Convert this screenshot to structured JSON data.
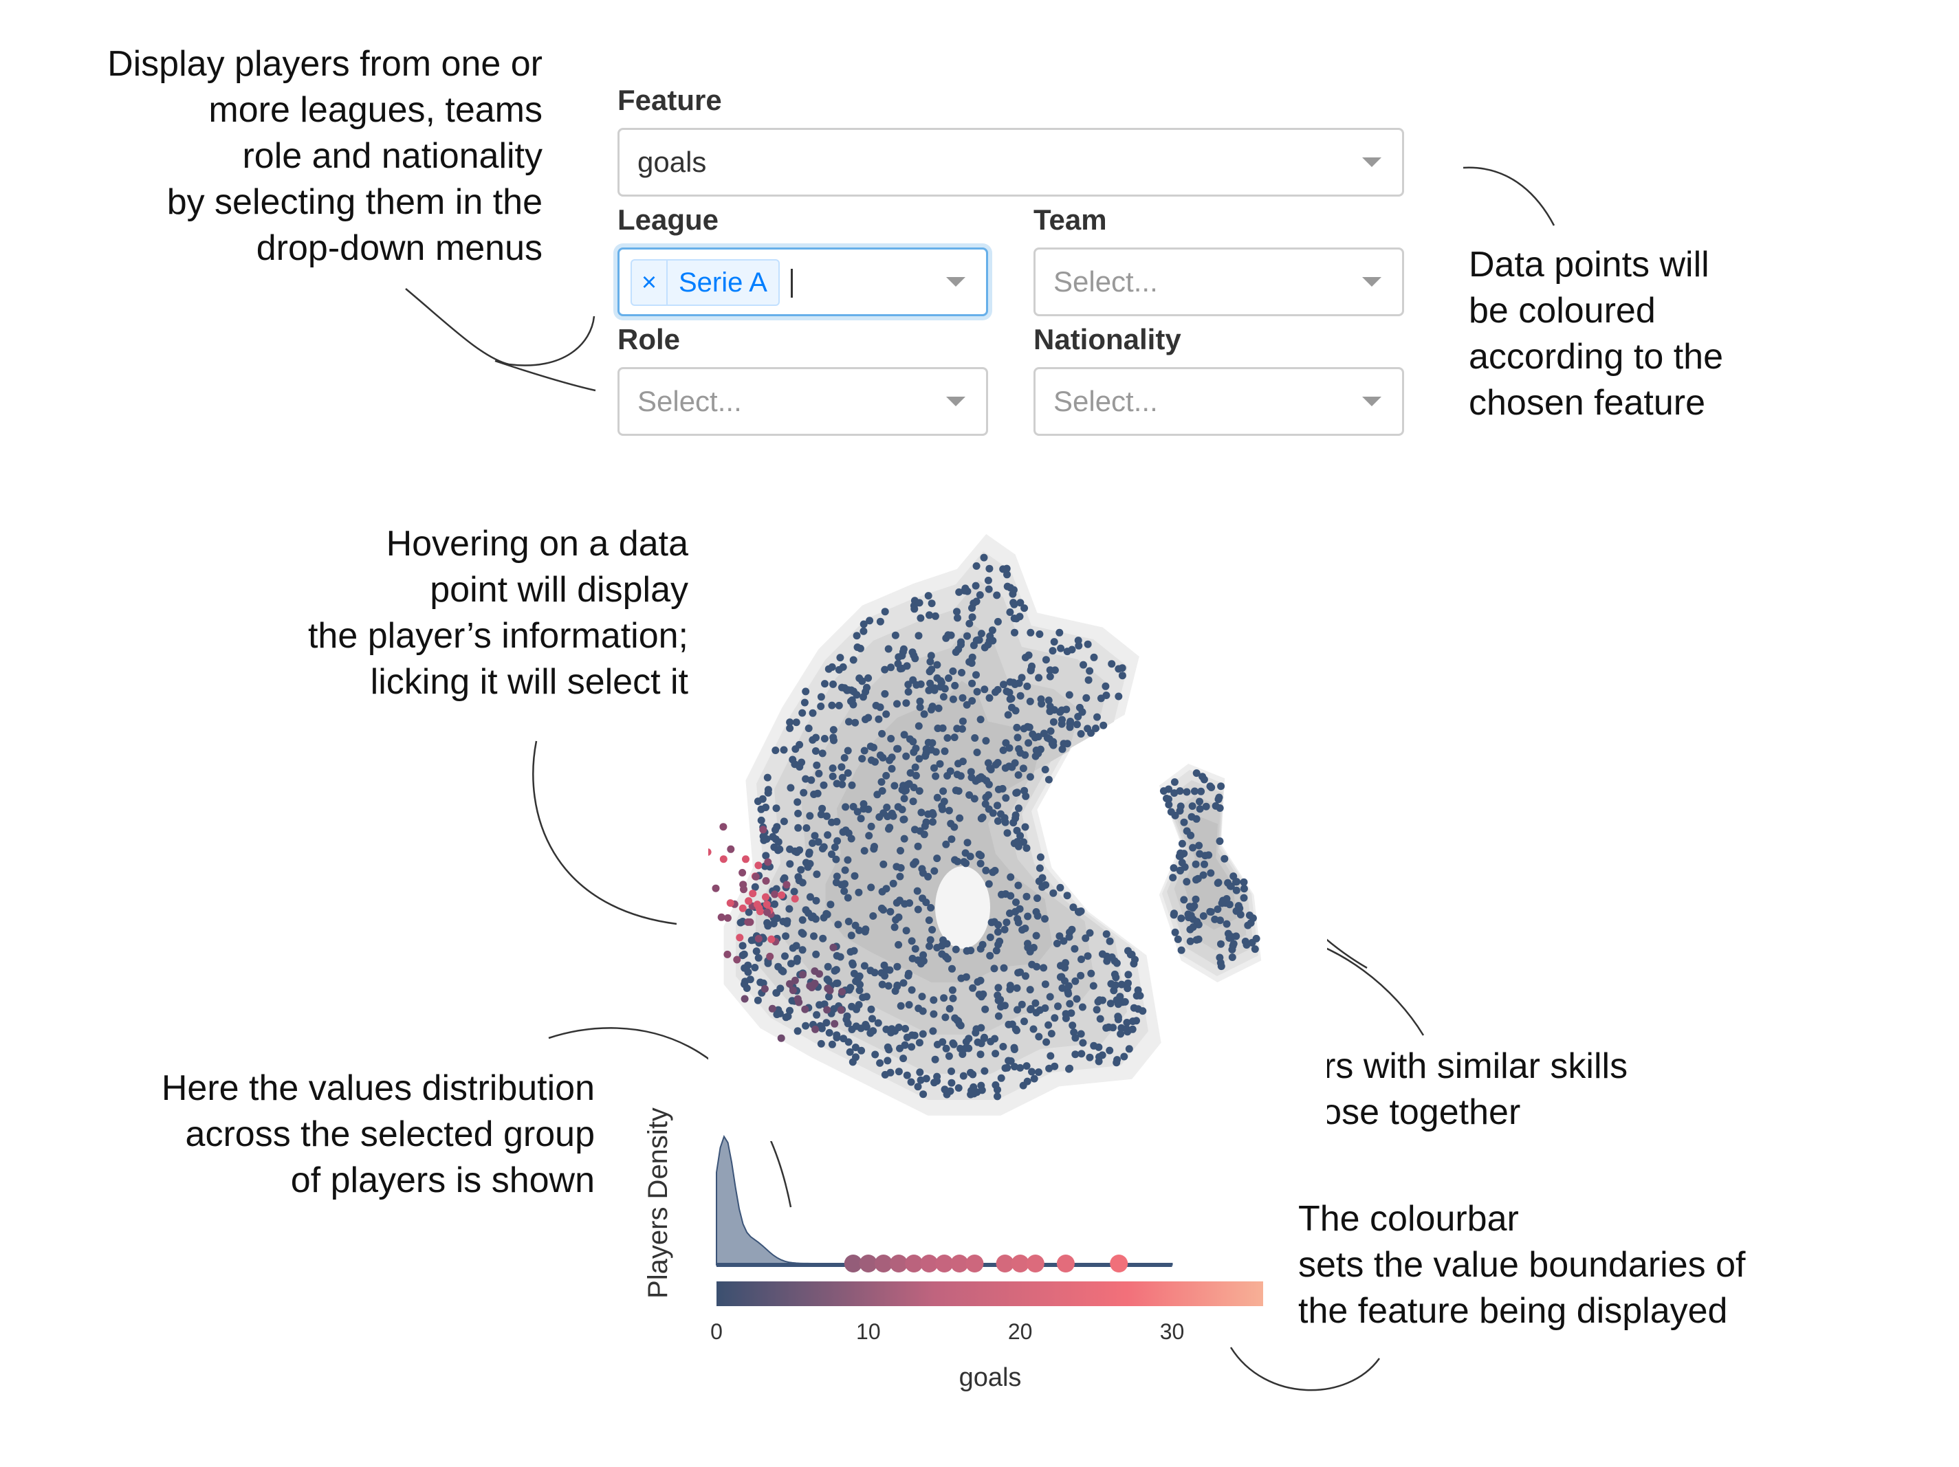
{
  "annotations": {
    "dropdowns": [
      "Display players from one or",
      "more leagues, teams",
      "role and nationality",
      "by selecting them in the",
      "drop-down menus"
    ],
    "colour": [
      "Data points will",
      "be coloured",
      "according to the",
      "chosen feature"
    ],
    "hover": [
      "Hovering on a data",
      "point will display",
      "the player’s information;",
      "licking it will select it"
    ],
    "similar": [
      "Players with similar skills",
      "are close together"
    ],
    "distribution": [
      "Here the values distribution",
      "across the selected group",
      "of players is shown"
    ],
    "colourbar": [
      "The colourbar",
      "sets the value boundaries of",
      "the feature being displayed"
    ]
  },
  "controls": {
    "feature": {
      "label": "Feature",
      "value": "goals"
    },
    "league": {
      "label": "League",
      "tag": "Serie A",
      "remove_glyph": "×"
    },
    "team": {
      "label": "Team",
      "placeholder": "Select..."
    },
    "role": {
      "label": "Role",
      "placeholder": "Select..."
    },
    "nationality": {
      "label": "Nationality",
      "placeholder": "Select..."
    }
  },
  "colors": {
    "point": "#3b5478",
    "highlight": "#d9546e",
    "cbar_start": "#3b5070",
    "cbar_mid": "#c0647e",
    "cbar_high": "#f2707a",
    "cbar_end": "#f7b096",
    "density_fill": "#dddddd"
  },
  "chart_data": {
    "type": "area",
    "xlabel": "goals",
    "ylabel": "Players Density",
    "x_ticks": [
      0,
      10,
      20,
      30
    ],
    "xlim": [
      0,
      36
    ],
    "density_peak_x": 0,
    "highlighted_players_goals": [
      9,
      10,
      11,
      12,
      13,
      14,
      15,
      16,
      17,
      19,
      20,
      21,
      23,
      26.5
    ],
    "colourbar": {
      "min": 0,
      "max": 36
    }
  }
}
